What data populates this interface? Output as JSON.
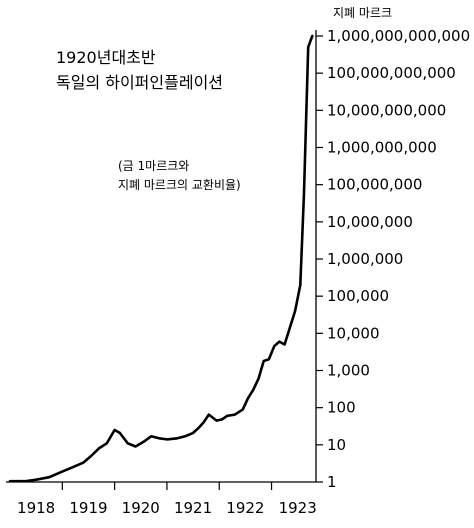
{
  "chart_data": {
    "type": "line",
    "title_lines": [
      "1920년대초반",
      "독일의 하이퍼인플레이션"
    ],
    "note_lines": [
      "(금 1마르크와",
      "지폐 마르크의 교환비율)"
    ],
    "ylabel": "지폐 마르크",
    "y_scale": "log",
    "ylim": [
      1,
      1000000000000
    ],
    "xlim": [
      1918.0,
      1923.85
    ],
    "grid": false,
    "legend": "none",
    "y_ticks": [
      {
        "value": 1,
        "label": "1"
      },
      {
        "value": 10,
        "label": "10"
      },
      {
        "value": 100,
        "label": "100"
      },
      {
        "value": 1000,
        "label": "1,000"
      },
      {
        "value": 10000,
        "label": "10,000"
      },
      {
        "value": 100000,
        "label": "100,000"
      },
      {
        "value": 1000000,
        "label": "1,000,000"
      },
      {
        "value": 10000000,
        "label": "10,000,000"
      },
      {
        "value": 100000000,
        "label": "100,000,000"
      },
      {
        "value": 1000000000,
        "label": "1,000,000,000"
      },
      {
        "value": 10000000000,
        "label": "10,000,000,000"
      },
      {
        "value": 100000000000,
        "label": "100,000,000,000"
      },
      {
        "value": 1000000000000,
        "label": "1,000,000,000,000"
      }
    ],
    "x_ticks": [
      {
        "value": 1918.5,
        "label": "1918"
      },
      {
        "value": 1919.5,
        "label": "1919"
      },
      {
        "value": 1920.5,
        "label": "1920"
      },
      {
        "value": 1921.5,
        "label": "1921"
      },
      {
        "value": 1922.5,
        "label": "1922"
      },
      {
        "value": 1923.5,
        "label": "1923"
      }
    ],
    "x_boundaries": [
      1919,
      1920,
      1921,
      1922,
      1923
    ],
    "series": [
      {
        "color": "#000000",
        "x": [
          1918.0,
          1918.3,
          1918.5,
          1918.75,
          1919.0,
          1919.2,
          1919.4,
          1919.55,
          1919.7,
          1919.85,
          1920.0,
          1920.1,
          1920.25,
          1920.4,
          1920.55,
          1920.7,
          1920.85,
          1921.0,
          1921.2,
          1921.35,
          1921.5,
          1921.6,
          1921.7,
          1921.8,
          1921.95,
          1922.05,
          1922.15,
          1922.3,
          1922.45,
          1922.55,
          1922.65,
          1922.75,
          1922.85,
          1922.95,
          1923.05,
          1923.15,
          1923.25,
          1923.35,
          1923.45,
          1923.55,
          1923.62,
          1923.7,
          1923.78
        ],
        "y": [
          1.05,
          1.05,
          1.15,
          1.35,
          1.9,
          2.5,
          3.3,
          5.0,
          8.0,
          11.0,
          25.0,
          21.0,
          11.0,
          9.0,
          12.0,
          17.0,
          15.0,
          14.0,
          15.0,
          17.0,
          21.0,
          28.0,
          40.0,
          65.0,
          45.0,
          48.0,
          60.0,
          65.0,
          90.0,
          180.0,
          300.0,
          600.0,
          1800.0,
          2000.0,
          4500.0,
          6000.0,
          5000.0,
          14000.0,
          40000.0,
          200000.0,
          60000000.0,
          500000000000.0,
          1000000000000.0
        ]
      }
    ]
  }
}
